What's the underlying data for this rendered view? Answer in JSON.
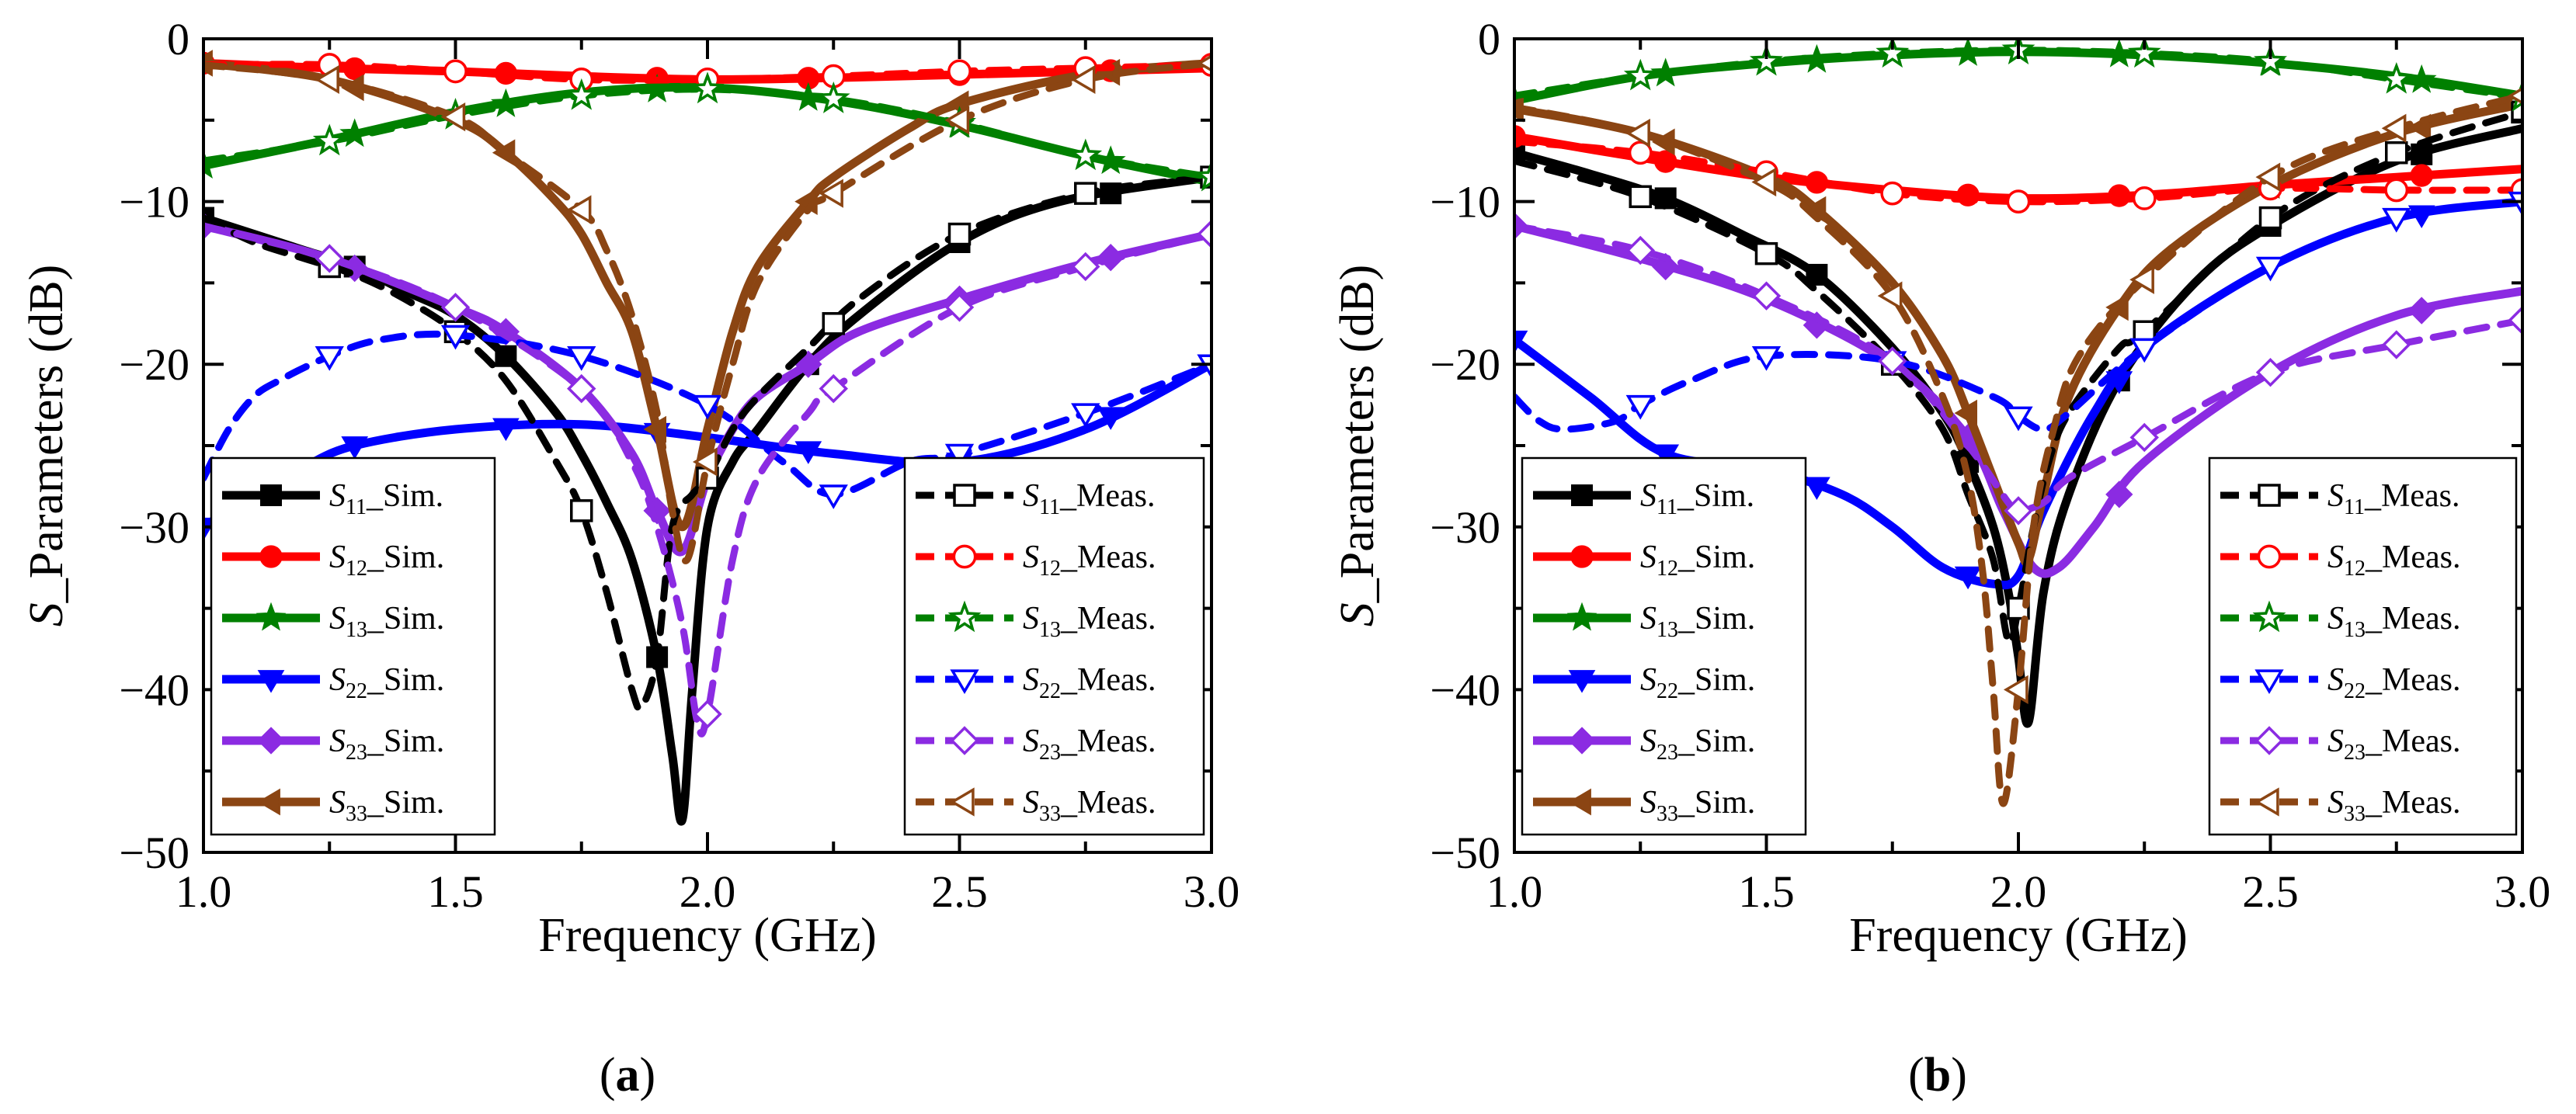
{
  "figure": {
    "captions": [
      {
        "open": "(",
        "letter": "a",
        "close": ")"
      },
      {
        "open": "(",
        "letter": "b",
        "close": ")"
      }
    ]
  },
  "chart_data": [
    {
      "type": "line",
      "panel": "a",
      "xlabel": "Frequency (GHz)",
      "ylabel_italic": "S",
      "ylabel_rest": "_Parameters (dB)",
      "xlim": [
        1.0,
        3.0
      ],
      "ylim": [
        -50,
        0
      ],
      "xticks": [
        1.0,
        1.5,
        2.0,
        2.5,
        3.0
      ],
      "xtick_labels": [
        "1.0",
        "1.5",
        "2.0",
        "2.5",
        "3.0"
      ],
      "yticks": [
        0,
        -10,
        -20,
        -30,
        -40,
        -50
      ],
      "ytick_labels": [
        "0",
        "−10",
        "−20",
        "−30",
        "−40",
        "−50"
      ],
      "legend_sim_position": "bottom-left",
      "legend_meas_position": "bottom-right",
      "series": [
        {
          "name": "S11",
          "sub": "11",
          "suffix": "_Sim.",
          "kind": "sim",
          "color": "#000000",
          "marker": "square",
          "x": [
            1.0,
            1.1,
            1.2,
            1.3,
            1.4,
            1.5,
            1.6,
            1.7,
            1.75,
            1.8,
            1.85,
            1.9,
            1.93,
            1.95,
            1.97,
            2.0,
            2.05,
            2.1,
            2.2,
            2.3,
            2.5,
            2.7,
            3.0
          ],
          "y": [
            -11,
            -12,
            -13,
            -14,
            -15.5,
            -17,
            -19.5,
            -23,
            -25.5,
            -28.5,
            -32,
            -38,
            -44,
            -48,
            -40,
            -30,
            -26,
            -24,
            -20,
            -17,
            -12.5,
            -10,
            -8.5
          ]
        },
        {
          "name": "S12",
          "sub": "12",
          "suffix": "_Sim.",
          "kind": "sim",
          "color": "#ff0000",
          "marker": "circle",
          "x": [
            1.0,
            1.25,
            1.5,
            1.75,
            2.0,
            2.25,
            2.5,
            2.75,
            3.0
          ],
          "y": [
            -1.5,
            -1.8,
            -2.0,
            -2.3,
            -2.5,
            -2.4,
            -2.2,
            -2.0,
            -1.8
          ]
        },
        {
          "name": "S13",
          "sub": "13",
          "suffix": "_Sim.",
          "kind": "sim",
          "color": "#008000",
          "marker": "star",
          "x": [
            1.0,
            1.25,
            1.5,
            1.75,
            2.0,
            2.25,
            2.5,
            2.75,
            3.0
          ],
          "y": [
            -7.8,
            -6.2,
            -4.5,
            -3.3,
            -3.0,
            -3.8,
            -5.3,
            -7.2,
            -8.8
          ]
        },
        {
          "name": "S22",
          "sub": "22",
          "suffix": "_Sim.",
          "kind": "sim",
          "color": "#0000ff",
          "marker": "tri-down",
          "x": [
            1.0,
            1.1,
            1.2,
            1.3,
            1.5,
            1.75,
            2.0,
            2.25,
            2.5,
            2.75,
            3.0
          ],
          "y": [
            -30,
            -28,
            -26.3,
            -25,
            -24,
            -23.7,
            -24.5,
            -25.5,
            -26,
            -24,
            -20
          ]
        },
        {
          "name": "S23",
          "sub": "23",
          "suffix": "_Sim.",
          "kind": "sim",
          "color": "#8b2be2",
          "marker": "diamond",
          "x": [
            1.0,
            1.25,
            1.5,
            1.6,
            1.75,
            1.85,
            1.9,
            1.95,
            2.0,
            2.05,
            2.1,
            2.2,
            2.3,
            2.5,
            2.75,
            3.0
          ],
          "y": [
            -11.5,
            -13.5,
            -16.5,
            -18,
            -21.5,
            -25.5,
            -29,
            -31.5,
            -27,
            -24,
            -22,
            -20,
            -18,
            -16,
            -13.8,
            -12
          ]
        },
        {
          "name": "S33",
          "sub": "33",
          "suffix": "_Sim.",
          "kind": "sim",
          "color": "#8b4513",
          "marker": "tri-left",
          "x": [
            1.0,
            1.25,
            1.5,
            1.6,
            1.7,
            1.75,
            1.8,
            1.85,
            1.9,
            1.95,
            2.0,
            2.05,
            2.1,
            2.2,
            2.25,
            2.4,
            2.5,
            2.75,
            3.0
          ],
          "y": [
            -1.5,
            -2.5,
            -5,
            -7,
            -10,
            -12,
            -15,
            -18,
            -24,
            -30,
            -24,
            -18,
            -14,
            -10,
            -8.5,
            -5.5,
            -4,
            -2.2,
            -1.5
          ]
        },
        {
          "name": "S11",
          "sub": "11",
          "suffix": "_Meas.",
          "kind": "meas",
          "color": "#000000",
          "marker": "square",
          "x": [
            1.0,
            1.1,
            1.2,
            1.3,
            1.4,
            1.5,
            1.6,
            1.7,
            1.75,
            1.8,
            1.85,
            1.87,
            1.9,
            1.93,
            1.97,
            2.0,
            2.05,
            2.1,
            2.2,
            2.3,
            2.5,
            2.75,
            3.0
          ],
          "y": [
            -11,
            -12.5,
            -13.5,
            -14.5,
            -16,
            -18,
            -21,
            -26,
            -29,
            -34,
            -40,
            -41,
            -38,
            -30,
            -28,
            -27,
            -24,
            -22,
            -19,
            -16,
            -12,
            -9.5,
            -8.5
          ]
        },
        {
          "name": "S12",
          "sub": "12",
          "suffix": "_Meas.",
          "kind": "meas",
          "color": "#ff0000",
          "marker": "circle",
          "x": [
            1.0,
            1.25,
            1.5,
            1.75,
            2.0,
            2.25,
            2.5,
            2.75,
            3.0
          ],
          "y": [
            -1.6,
            -1.6,
            -2.0,
            -2.5,
            -2.5,
            -2.3,
            -2.0,
            -1.8,
            -1.6
          ]
        },
        {
          "name": "S13",
          "sub": "13",
          "suffix": "_Meas.",
          "kind": "meas",
          "color": "#008000",
          "marker": "star",
          "x": [
            1.0,
            1.25,
            1.5,
            1.75,
            2.0,
            2.25,
            2.5,
            2.75,
            3.0
          ],
          "y": [
            -7.5,
            -6.3,
            -4.7,
            -3.5,
            -3.1,
            -3.7,
            -5.2,
            -7.2,
            -8.5
          ]
        },
        {
          "name": "S22",
          "sub": "22",
          "suffix": "_Meas.",
          "kind": "meas",
          "color": "#0000ff",
          "marker": "tri-down",
          "x": [
            1.0,
            1.05,
            1.1,
            1.15,
            1.25,
            1.35,
            1.5,
            1.75,
            2.0,
            2.15,
            2.25,
            2.4,
            2.5,
            2.75,
            3.0
          ],
          "y": [
            -27,
            -24,
            -22,
            -21,
            -19.5,
            -18.5,
            -18.2,
            -19.5,
            -22.5,
            -26,
            -28,
            -26,
            -25.5,
            -23,
            -20
          ]
        },
        {
          "name": "S23",
          "sub": "23",
          "suffix": "_Meas.",
          "kind": "meas",
          "color": "#8b2be2",
          "marker": "diamond",
          "x": [
            1.0,
            1.25,
            1.5,
            1.75,
            1.85,
            1.9,
            1.95,
            1.98,
            2.0,
            2.05,
            2.1,
            2.2,
            2.25,
            2.5,
            2.75,
            3.0
          ],
          "y": [
            -11.5,
            -13.5,
            -16.5,
            -21.5,
            -26,
            -30,
            -36,
            -42,
            -41.5,
            -32,
            -27,
            -23,
            -21.5,
            -16.5,
            -14,
            -12
          ]
        },
        {
          "name": "S33",
          "sub": "33",
          "suffix": "_Meas.",
          "kind": "meas",
          "color": "#8b4513",
          "marker": "tri-left",
          "x": [
            1.0,
            1.25,
            1.5,
            1.6,
            1.75,
            1.8,
            1.85,
            1.9,
            1.93,
            1.96,
            2.0,
            2.05,
            2.1,
            2.2,
            2.25,
            2.5,
            2.75,
            3.0
          ],
          "y": [
            -1.6,
            -2.5,
            -4.8,
            -7,
            -10.5,
            -13,
            -17,
            -23,
            -29,
            -32,
            -26,
            -20,
            -15,
            -10.5,
            -9.5,
            -5,
            -2.5,
            -1.5
          ]
        }
      ]
    },
    {
      "type": "line",
      "panel": "b",
      "xlabel": "Frequency (GHz)",
      "ylabel_italic": "S",
      "ylabel_rest": "_Parameters (dB)",
      "xlim": [
        1.0,
        3.0
      ],
      "ylim": [
        -50,
        0
      ],
      "xticks": [
        1.0,
        1.5,
        2.0,
        2.5,
        3.0
      ],
      "xtick_labels": [
        "1.0",
        "1.5",
        "2.0",
        "2.5",
        "3.0"
      ],
      "yticks": [
        0,
        -10,
        -20,
        -30,
        -40,
        -50
      ],
      "ytick_labels": [
        "0",
        "−10",
        "−20",
        "−30",
        "−40",
        "−50"
      ],
      "legend_sim_position": "bottom-left",
      "legend_meas_position": "bottom-right",
      "series": [
        {
          "name": "S11",
          "sub": "11",
          "suffix": "_Sim.",
          "kind": "sim",
          "color": "#000000",
          "marker": "square",
          "x": [
            1.0,
            1.15,
            1.3,
            1.45,
            1.6,
            1.75,
            1.85,
            1.9,
            1.95,
            1.98,
            2.0,
            2.02,
            2.05,
            2.1,
            2.2,
            2.35,
            2.5,
            2.75,
            3.0
          ],
          "y": [
            -7,
            -8.3,
            -9.8,
            -12,
            -14.5,
            -19,
            -23,
            -26,
            -30,
            -34,
            -38,
            -42,
            -34,
            -28,
            -21,
            -15,
            -11.5,
            -7.5,
            -5.5
          ]
        },
        {
          "name": "S12",
          "sub": "12",
          "suffix": "_Sim.",
          "kind": "sim",
          "color": "#ff0000",
          "marker": "circle",
          "x": [
            1.0,
            1.25,
            1.5,
            1.75,
            2.0,
            2.25,
            2.5,
            2.75,
            3.0
          ],
          "y": [
            -6,
            -7.3,
            -8.5,
            -9.3,
            -9.8,
            -9.6,
            -9.0,
            -8.5,
            -8.0
          ]
        },
        {
          "name": "S13",
          "sub": "13",
          "suffix": "_Sim.",
          "kind": "sim",
          "color": "#008000",
          "marker": "star",
          "x": [
            1.0,
            1.25,
            1.5,
            1.75,
            2.0,
            2.25,
            2.5,
            2.75,
            3.0
          ],
          "y": [
            -3.8,
            -2.3,
            -1.5,
            -1.0,
            -0.8,
            -1.0,
            -1.5,
            -2.3,
            -3.5
          ]
        },
        {
          "name": "S22",
          "sub": "22",
          "suffix": "_Sim.",
          "kind": "sim",
          "color": "#0000ff",
          "marker": "tri-down",
          "x": [
            1.0,
            1.15,
            1.3,
            1.5,
            1.65,
            1.75,
            1.85,
            1.95,
            2.0,
            2.05,
            2.15,
            2.25,
            2.5,
            2.75,
            3.0
          ],
          "y": [
            -18.5,
            -22,
            -25.5,
            -26.5,
            -28,
            -30,
            -32.5,
            -33.5,
            -33,
            -29,
            -23,
            -19,
            -14,
            -11,
            -10
          ]
        },
        {
          "name": "S23",
          "sub": "23",
          "suffix": "_Sim.",
          "kind": "sim",
          "color": "#8b2be2",
          "marker": "diamond",
          "x": [
            1.0,
            1.25,
            1.5,
            1.75,
            1.9,
            1.97,
            2.03,
            2.08,
            2.15,
            2.25,
            2.5,
            2.75,
            3.0
          ],
          "y": [
            -11.5,
            -13.5,
            -16,
            -20,
            -24.5,
            -29,
            -32.5,
            -32.5,
            -30,
            -26,
            -20.5,
            -17,
            -15.5
          ]
        },
        {
          "name": "S33",
          "sub": "33",
          "suffix": "_Sim.",
          "kind": "sim",
          "color": "#8b4513",
          "marker": "tri-left",
          "x": [
            1.0,
            1.25,
            1.5,
            1.6,
            1.75,
            1.85,
            1.9,
            1.95,
            2.0,
            2.02,
            2.05,
            2.1,
            2.2,
            2.3,
            2.5,
            2.75,
            3.0
          ],
          "y": [
            -4.3,
            -5.8,
            -8.5,
            -10.5,
            -15,
            -19.5,
            -23,
            -27,
            -31,
            -32,
            -28,
            -22,
            -16.5,
            -13,
            -9,
            -5.8,
            -4
          ]
        },
        {
          "name": "S11",
          "sub": "11",
          "suffix": "_Meas.",
          "kind": "meas",
          "color": "#000000",
          "marker": "square",
          "x": [
            1.0,
            1.25,
            1.5,
            1.6,
            1.75,
            1.85,
            1.9,
            1.95,
            1.98,
            2.0,
            2.03,
            2.06,
            2.1,
            2.2,
            2.25,
            2.5,
            2.75,
            3.0
          ],
          "y": [
            -7.5,
            -9.7,
            -13.2,
            -15.5,
            -20,
            -24,
            -28,
            -32,
            -37,
            -35,
            -30,
            -26,
            -23,
            -19,
            -18,
            -11,
            -7,
            -4.5
          ]
        },
        {
          "name": "S12",
          "sub": "12",
          "suffix": "_Meas.",
          "kind": "meas",
          "color": "#ff0000",
          "marker": "circle",
          "x": [
            1.0,
            1.25,
            1.5,
            1.75,
            2.0,
            2.25,
            2.5,
            2.75,
            3.0
          ],
          "y": [
            -6.3,
            -7.0,
            -8.2,
            -9.5,
            -10,
            -9.8,
            -9.2,
            -9.3,
            -9.3
          ]
        },
        {
          "name": "S13",
          "sub": "13",
          "suffix": "_Meas.",
          "kind": "meas",
          "color": "#008000",
          "marker": "star",
          "x": [
            1.0,
            1.25,
            1.5,
            1.75,
            2.0,
            2.25,
            2.5,
            2.75,
            3.0
          ],
          "y": [
            -3.5,
            -2.3,
            -1.4,
            -0.9,
            -0.7,
            -0.9,
            -1.4,
            -2.5,
            -3.6
          ]
        },
        {
          "name": "S22",
          "sub": "22",
          "suffix": "_Meas.",
          "kind": "meas",
          "color": "#0000ff",
          "marker": "tri-down",
          "x": [
            1.0,
            1.05,
            1.1,
            1.2,
            1.25,
            1.35,
            1.5,
            1.75,
            1.95,
            2.0,
            2.05,
            2.1,
            2.25,
            2.5,
            2.75,
            3.0
          ],
          "y": [
            -22,
            -23.5,
            -24,
            -23.5,
            -22.5,
            -21,
            -19.5,
            -19.8,
            -22,
            -23.2,
            -24,
            -23,
            -19,
            -14,
            -11,
            -10
          ]
        },
        {
          "name": "S23",
          "sub": "23",
          "suffix": "_Meas.",
          "kind": "meas",
          "color": "#8b2be2",
          "marker": "diamond",
          "x": [
            1.0,
            1.25,
            1.5,
            1.75,
            1.9,
            1.98,
            2.0,
            2.05,
            2.1,
            2.25,
            2.5,
            2.75,
            3.0
          ],
          "y": [
            -11.5,
            -13,
            -15.8,
            -19.8,
            -25,
            -28.5,
            -29,
            -28.5,
            -27,
            -24.5,
            -20.5,
            -18.8,
            -17.3
          ]
        },
        {
          "name": "S33",
          "sub": "33",
          "suffix": "_Meas.",
          "kind": "meas",
          "color": "#8b4513",
          "marker": "tri-left",
          "x": [
            1.0,
            1.25,
            1.5,
            1.6,
            1.75,
            1.85,
            1.9,
            1.93,
            1.95,
            1.97,
            2.0,
            2.03,
            2.07,
            2.12,
            2.25,
            2.5,
            2.75,
            3.0
          ],
          "y": [
            -4.2,
            -5.8,
            -8.8,
            -11,
            -15.8,
            -22,
            -27,
            -33,
            -40,
            -47,
            -40,
            -30,
            -24,
            -19.5,
            -14.8,
            -8.5,
            -5.5,
            -3.5
          ]
        }
      ]
    }
  ]
}
